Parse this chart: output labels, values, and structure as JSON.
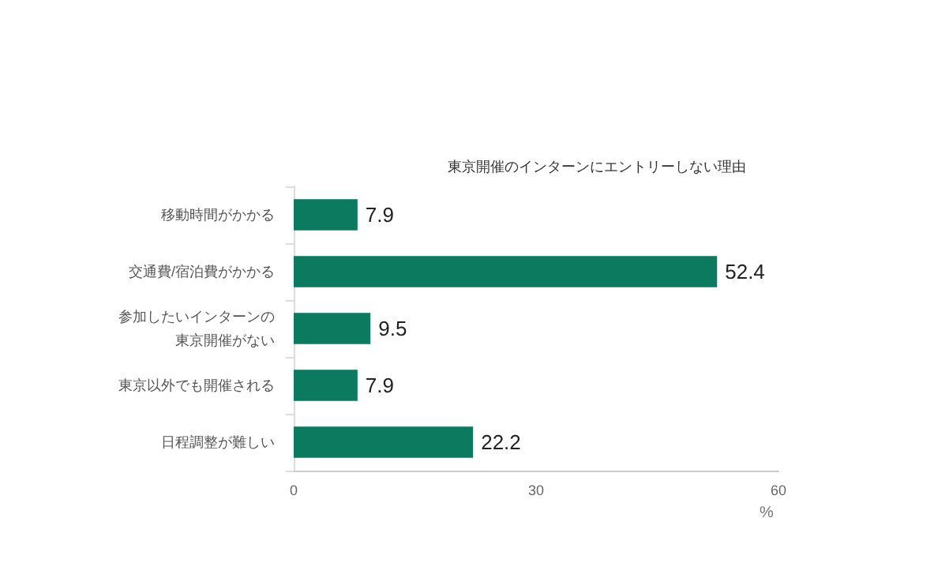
{
  "chart_data": {
    "type": "bar",
    "orientation": "horizontal",
    "title": "東京開催のインターンにエントリーしない理由",
    "xlabel": "%",
    "categories": [
      "移動時間がかかる",
      "交通費/宿泊費がかかる",
      "参加したいインターンの東京開催がない",
      "東京以外でも開催される",
      "日程調整が難しい"
    ],
    "values": [
      7.9,
      52.4,
      9.5,
      7.9,
      22.2
    ],
    "color": "#0b7a5e",
    "xlim": [
      0,
      60
    ],
    "xticks": [
      0,
      30,
      60
    ],
    "grid": false,
    "data_labels": true
  }
}
